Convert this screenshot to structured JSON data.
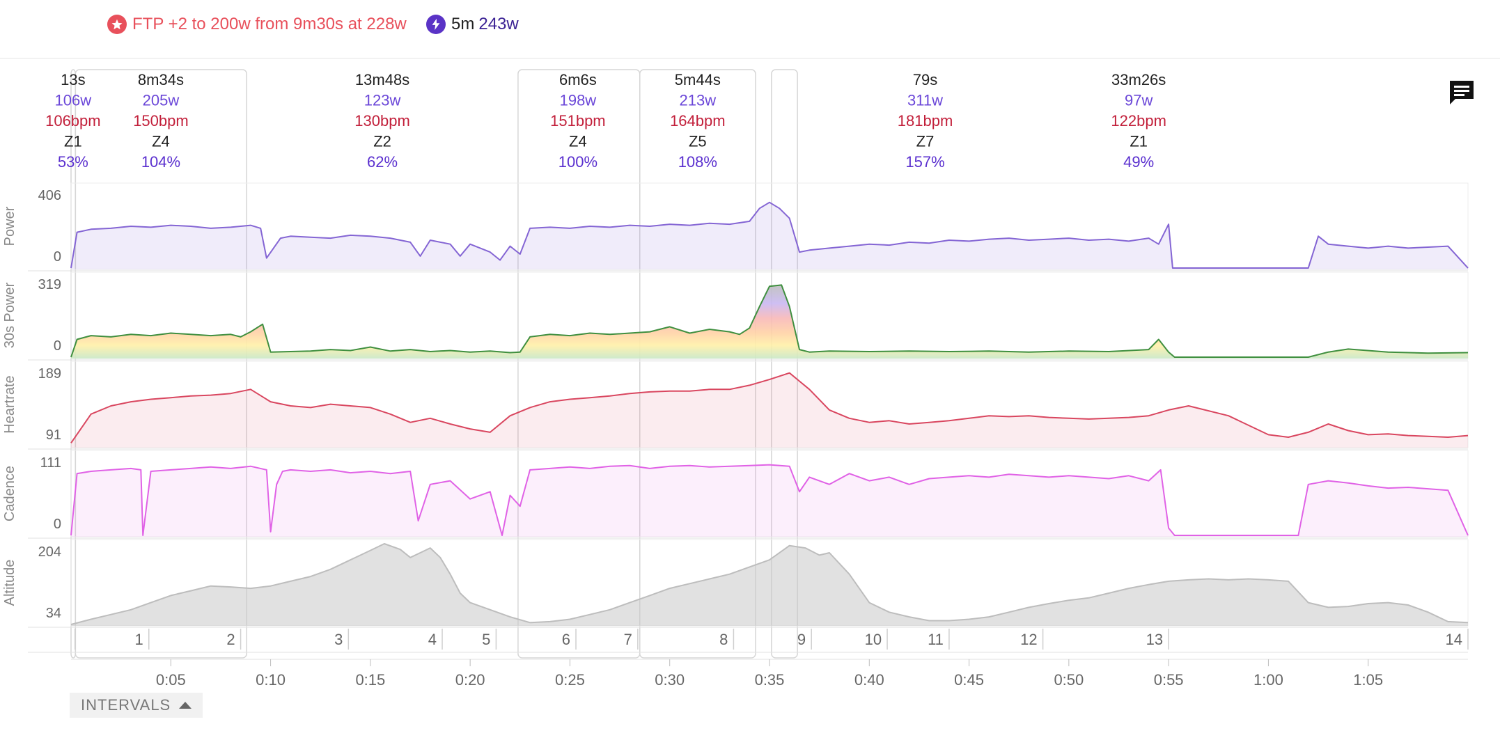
{
  "header": {
    "ftp_message": "FTP +2 to 200w from 9m30s at 228w",
    "peak": {
      "duration": "5m",
      "value": "243w"
    }
  },
  "toggle": {
    "label": "INTERVALS"
  },
  "colors": {
    "power": "#8465d4",
    "heartrate": "#d9465f",
    "cadence": "#e062e6",
    "altitude": "#c8c8c8",
    "watts_text": "#6a46d8",
    "hr_text": "#c21f3a",
    "pct_text": "#5a2fcf"
  },
  "interval_stats": [
    {
      "duration": "13s",
      "watts": "106w",
      "hr": "106bpm",
      "zone": "Z1",
      "pct": "53%"
    },
    {
      "duration": "8m34s",
      "watts": "205w",
      "hr": "150bpm",
      "zone": "Z4",
      "pct": "104%"
    },
    {
      "duration": "13m48s",
      "watts": "123w",
      "hr": "130bpm",
      "zone": "Z2",
      "pct": "62%"
    },
    {
      "duration": "6m6s",
      "watts": "198w",
      "hr": "151bpm",
      "zone": "Z4",
      "pct": "100%"
    },
    {
      "duration": "5m44s",
      "watts": "213w",
      "hr": "164bpm",
      "zone": "Z5",
      "pct": "108%"
    },
    {
      "duration": "79s",
      "watts": "311w",
      "hr": "181bpm",
      "zone": "Z7",
      "pct": "157%"
    },
    {
      "duration": "33m26s",
      "watts": "97w",
      "hr": "122bpm",
      "zone": "Z1",
      "pct": "49%"
    }
  ],
  "chart_data": {
    "type": "line",
    "x_unit": "minutes",
    "xlim": [
      0,
      70
    ],
    "x_ticks": [
      {
        "label": "0:05",
        "value": 5
      },
      {
        "label": "0:10",
        "value": 10
      },
      {
        "label": "0:15",
        "value": 15
      },
      {
        "label": "0:20",
        "value": 20
      },
      {
        "label": "0:25",
        "value": 25
      },
      {
        "label": "0:30",
        "value": 30
      },
      {
        "label": "0:35",
        "value": 35
      },
      {
        "label": "0:40",
        "value": 40
      },
      {
        "label": "0:45",
        "value": 45
      },
      {
        "label": "0:50",
        "value": 50
      },
      {
        "label": "0:55",
        "value": 55
      },
      {
        "label": "1:00",
        "value": 60
      },
      {
        "label": "1:05",
        "value": 65
      }
    ],
    "panels": [
      {
        "name": "Power",
        "ylabel": "Power",
        "ylim": [
          0,
          406
        ],
        "tick_labels": [
          "406",
          "0"
        ],
        "x": [
          0,
          0.3,
          1,
          2,
          3,
          4,
          5,
          6,
          7,
          8,
          9,
          9.5,
          9.8,
          10.5,
          11,
          12,
          13,
          14,
          15,
          16,
          17,
          17.5,
          18,
          19,
          19.5,
          20,
          21,
          21.5,
          22,
          22.5,
          23,
          24,
          25,
          26,
          27,
          28,
          29,
          30,
          31,
          32,
          33,
          34,
          34.5,
          35,
          35.5,
          36,
          36.5,
          37,
          38,
          39,
          40,
          41,
          42,
          43,
          44,
          45,
          46,
          47,
          48,
          49,
          50,
          51,
          52,
          53,
          54,
          54.5,
          55,
          55.2,
          56,
          58,
          60,
          62,
          62.5,
          63,
          64,
          65,
          66,
          67,
          68,
          69,
          70
        ],
        "y": [
          0,
          180,
          195,
          200,
          210,
          205,
          215,
          210,
          200,
          205,
          215,
          200,
          50,
          150,
          160,
          155,
          150,
          165,
          160,
          150,
          130,
          60,
          140,
          120,
          60,
          120,
          80,
          40,
          110,
          70,
          200,
          205,
          200,
          210,
          205,
          215,
          210,
          220,
          215,
          225,
          220,
          235,
          300,
          330,
          300,
          250,
          80,
          90,
          100,
          110,
          120,
          115,
          130,
          125,
          140,
          135,
          145,
          150,
          140,
          145,
          150,
          140,
          145,
          135,
          150,
          120,
          220,
          0,
          0,
          0,
          0,
          0,
          160,
          120,
          110,
          100,
          110,
          100,
          105,
          110,
          0
        ]
      },
      {
        "name": "30s Power",
        "ylabel": "30s Power",
        "ylim": [
          0,
          319
        ],
        "tick_labels": [
          "319",
          "0"
        ],
        "x": [
          0,
          0.3,
          1,
          2,
          3,
          4,
          5,
          6,
          7,
          8,
          8.5,
          9,
          9.6,
          10,
          11,
          12,
          13,
          14,
          15,
          16,
          17,
          18,
          19,
          20,
          21,
          22,
          22.5,
          23,
          24,
          25,
          26,
          27,
          28,
          29,
          30,
          31,
          32,
          33,
          33.5,
          34,
          34.5,
          35,
          35.6,
          36,
          36.5,
          37,
          38,
          40,
          42,
          44,
          46,
          48,
          50,
          52,
          54,
          54.5,
          55,
          55.3,
          58,
          60,
          62,
          63,
          64,
          66,
          68,
          70
        ],
        "y": [
          0,
          70,
          85,
          80,
          90,
          85,
          95,
          90,
          85,
          90,
          80,
          100,
          130,
          20,
          22,
          24,
          30,
          26,
          40,
          24,
          30,
          22,
          26,
          20,
          24,
          18,
          20,
          80,
          90,
          85,
          95,
          90,
          95,
          100,
          120,
          95,
          110,
          100,
          90,
          115,
          200,
          280,
          285,
          200,
          30,
          20,
          24,
          22,
          24,
          22,
          24,
          20,
          24,
          22,
          30,
          70,
          20,
          0,
          0,
          0,
          0,
          20,
          32,
          20,
          16,
          18
        ]
      },
      {
        "name": "Heartrate",
        "ylabel": "Heartrate",
        "ylim": [
          91,
          189
        ],
        "tick_labels": [
          "189",
          "91"
        ],
        "x": [
          0,
          1,
          2,
          3,
          4,
          5,
          6,
          7,
          8,
          9,
          10,
          11,
          12,
          13,
          14,
          15,
          16,
          17,
          18,
          19,
          20,
          21,
          22,
          23,
          24,
          25,
          26,
          27,
          28,
          29,
          30,
          31,
          32,
          33,
          34,
          35,
          36,
          37,
          38,
          39,
          40,
          41,
          42,
          43,
          44,
          45,
          46,
          47,
          48,
          49,
          50,
          51,
          52,
          53,
          54,
          55,
          56,
          58,
          60,
          61,
          62,
          63,
          64,
          65,
          66,
          67,
          68,
          69,
          70
        ],
        "y": [
          95,
          130,
          140,
          145,
          148,
          150,
          152,
          153,
          155,
          160,
          145,
          140,
          138,
          142,
          140,
          138,
          130,
          120,
          125,
          118,
          112,
          108,
          128,
          138,
          145,
          148,
          150,
          152,
          155,
          157,
          158,
          158,
          160,
          160,
          165,
          172,
          180,
          160,
          135,
          125,
          120,
          122,
          118,
          120,
          122,
          125,
          128,
          127,
          128,
          126,
          125,
          124,
          125,
          126,
          128,
          135,
          140,
          128,
          105,
          102,
          108,
          118,
          110,
          105,
          106,
          104,
          103,
          102,
          104
        ]
      },
      {
        "name": "Cadence",
        "ylabel": "Cadence",
        "ylim": [
          0,
          111
        ],
        "tick_labels": [
          "111",
          "0"
        ],
        "x": [
          0,
          0.3,
          1,
          2,
          3,
          3.5,
          3.6,
          4,
          5,
          6,
          7,
          8,
          9,
          9.8,
          10,
          10.3,
          10.6,
          11,
          12,
          13,
          14,
          15,
          16,
          17,
          17.4,
          18,
          19,
          20,
          21,
          21.6,
          22,
          22.5,
          23,
          24,
          25,
          26,
          27,
          28,
          29,
          30,
          31,
          32,
          33,
          34,
          35,
          36,
          36.5,
          37,
          38,
          39,
          40,
          41,
          42,
          43,
          44,
          45,
          46,
          47,
          48,
          49,
          50,
          51,
          52,
          53,
          54,
          54.6,
          55,
          55.3,
          56,
          58,
          60,
          61.5,
          62,
          63,
          64,
          65,
          66,
          67,
          68,
          69,
          70
        ],
        "y": [
          0,
          85,
          88,
          90,
          92,
          90,
          0,
          88,
          90,
          92,
          94,
          92,
          95,
          90,
          5,
          70,
          88,
          90,
          88,
          90,
          86,
          88,
          85,
          88,
          20,
          70,
          75,
          50,
          60,
          0,
          55,
          40,
          90,
          92,
          94,
          92,
          95,
          96,
          92,
          95,
          96,
          94,
          95,
          96,
          97,
          95,
          60,
          80,
          70,
          85,
          75,
          80,
          70,
          78,
          80,
          82,
          80,
          84,
          82,
          80,
          82,
          80,
          78,
          82,
          75,
          90,
          10,
          0,
          0,
          0,
          0,
          0,
          70,
          75,
          72,
          68,
          65,
          66,
          64,
          62,
          0
        ]
      },
      {
        "name": "Altitude",
        "ylabel": "Altitude",
        "ylim": [
          34,
          204
        ],
        "tick_labels": [
          "204",
          "34"
        ],
        "x": [
          0,
          1,
          2,
          3,
          4,
          5,
          6,
          7,
          8,
          9,
          10,
          11,
          12,
          13,
          14,
          15,
          15.7,
          16.5,
          17,
          17.5,
          18,
          18.5,
          19,
          19.5,
          20,
          21,
          22,
          23,
          24,
          25,
          26,
          27,
          28,
          29,
          30,
          31,
          32,
          33,
          34,
          35,
          36,
          36.8,
          37.5,
          38,
          39,
          40,
          41,
          42,
          43,
          44,
          45,
          46,
          47,
          48,
          49,
          50,
          51,
          52,
          53,
          54,
          55,
          56,
          57,
          58,
          59,
          60,
          61,
          62,
          63,
          64,
          65,
          66,
          67,
          68,
          69,
          70
        ],
        "y": [
          34,
          45,
          55,
          65,
          80,
          95,
          105,
          115,
          113,
          110,
          115,
          125,
          135,
          150,
          170,
          190,
          204,
          192,
          175,
          185,
          195,
          175,
          140,
          100,
          80,
          65,
          50,
          38,
          40,
          45,
          55,
          65,
          80,
          95,
          110,
          120,
          130,
          140,
          155,
          170,
          200,
          195,
          180,
          185,
          140,
          80,
          60,
          50,
          42,
          42,
          45,
          50,
          60,
          70,
          78,
          85,
          90,
          100,
          110,
          118,
          125,
          128,
          130,
          128,
          130,
          128,
          125,
          80,
          70,
          72,
          78,
          80,
          75,
          60,
          40,
          38
        ]
      }
    ],
    "interval_regions": [
      {
        "start": 0,
        "end": 0.22
      },
      {
        "start": 0.22,
        "end": 8.8
      },
      {
        "start": 22.4,
        "end": 28.5
      },
      {
        "start": 28.5,
        "end": 34.3
      },
      {
        "start": 35.1,
        "end": 36.4
      }
    ],
    "lap_markers": [
      {
        "label": "1",
        "start": 0.2,
        "end": 3.9
      },
      {
        "label": "2",
        "start": 3.9,
        "end": 8.5
      },
      {
        "label": "3",
        "start": 8.5,
        "end": 13.9
      },
      {
        "label": "4",
        "start": 13.9,
        "end": 18.6
      },
      {
        "label": "5",
        "start": 18.6,
        "end": 21.3
      },
      {
        "label": "6",
        "start": 21.3,
        "end": 25.3
      },
      {
        "label": "7",
        "start": 25.3,
        "end": 28.4
      },
      {
        "label": "8",
        "start": 28.4,
        "end": 33.2
      },
      {
        "label": "9",
        "start": 33.2,
        "end": 37.1
      },
      {
        "label": "10",
        "start": 37.1,
        "end": 40.9
      },
      {
        "label": "11",
        "start": 40.9,
        "end": 44.0
      },
      {
        "label": "12",
        "start": 44.0,
        "end": 48.7
      },
      {
        "label": "13",
        "start": 48.7,
        "end": 55.0
      },
      {
        "label": "14",
        "start": 55.0,
        "end": 70.0
      }
    ],
    "interval_labels_at": [
      0.1,
      4.5,
      15.6,
      25.4,
      31.4,
      42.8,
      53.5
    ]
  }
}
